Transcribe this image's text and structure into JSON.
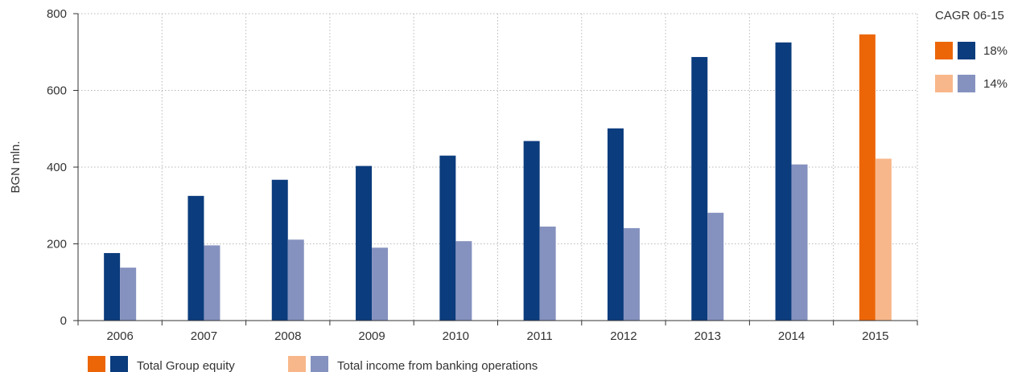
{
  "chart_data": {
    "type": "bar",
    "ylabel": "BGN mln.",
    "xlabel": "",
    "ylim": [
      0,
      800
    ],
    "yticks": [
      0,
      200,
      400,
      600,
      800
    ],
    "grid": true,
    "categories": [
      "2006",
      "2007",
      "2008",
      "2009",
      "2010",
      "2011",
      "2012",
      "2013",
      "2014",
      "2015"
    ],
    "series": [
      {
        "name": "Total Group equity",
        "color": "#0b3c7d",
        "highlight_color": "#ec6608",
        "values": [
          176,
          325,
          367,
          403,
          430,
          468,
          501,
          687,
          725,
          746
        ]
      },
      {
        "name": "Total income from banking operations",
        "color": "#8592bf",
        "highlight_color": "#f8b78a",
        "values": [
          138,
          196,
          211,
          190,
          207,
          245,
          241,
          281,
          407,
          422
        ]
      }
    ],
    "highlight_category": "2015",
    "cagr": {
      "title": "CAGR 06-15",
      "items": [
        {
          "value": "18%",
          "colors": [
            "#ec6608",
            "#0b3c7d"
          ]
        },
        {
          "value": "14%",
          "colors": [
            "#f8b78a",
            "#8592bf"
          ]
        }
      ]
    },
    "legend_position": "bottom-left"
  }
}
